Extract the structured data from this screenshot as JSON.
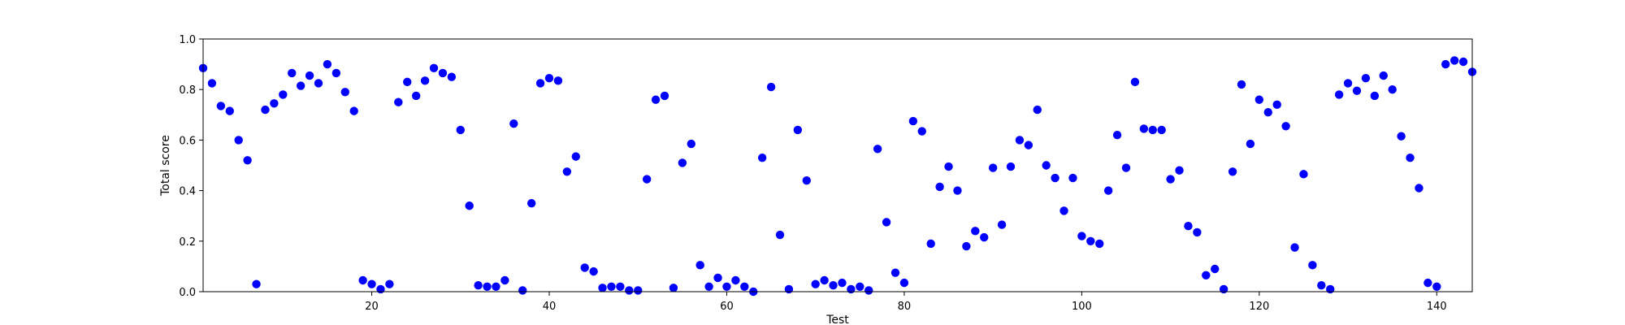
{
  "chart_data": {
    "type": "scatter",
    "xlabel": "Test",
    "ylabel": "Total score",
    "xlim": [
      1,
      144
    ],
    "ylim": [
      0.0,
      1.0
    ],
    "xticks": [
      20,
      40,
      60,
      80,
      100,
      120,
      140
    ],
    "yticks": [
      0.0,
      0.2,
      0.4,
      0.6,
      0.8,
      1.0
    ],
    "xtick_labels": [
      "20",
      "40",
      "60",
      "80",
      "100",
      "120",
      "140"
    ],
    "ytick_labels": [
      "0.0",
      "0.2",
      "0.4",
      "0.6",
      "0.8",
      "1.0"
    ],
    "grid": false,
    "marker_color": "#0000ff",
    "x": [
      1,
      2,
      3,
      4,
      5,
      6,
      7,
      8,
      9,
      10,
      11,
      12,
      13,
      14,
      15,
      16,
      17,
      18,
      19,
      20,
      21,
      22,
      23,
      24,
      25,
      26,
      27,
      28,
      29,
      30,
      31,
      32,
      33,
      34,
      35,
      36,
      37,
      38,
      39,
      40,
      41,
      42,
      43,
      44,
      45,
      46,
      47,
      48,
      49,
      50,
      51,
      52,
      53,
      54,
      55,
      56,
      57,
      58,
      59,
      60,
      61,
      62,
      63,
      64,
      65,
      66,
      67,
      68,
      69,
      70,
      71,
      72,
      73,
      74,
      75,
      76,
      77,
      78,
      79,
      80,
      81,
      82,
      83,
      84,
      85,
      86,
      87,
      88,
      89,
      90,
      91,
      92,
      93,
      94,
      95,
      96,
      97,
      98,
      99,
      100,
      101,
      102,
      103,
      104,
      105,
      106,
      107,
      108,
      109,
      110,
      111,
      112,
      113,
      114,
      115,
      116,
      117,
      118,
      119,
      120,
      121,
      122,
      123,
      124,
      125,
      126,
      127,
      128,
      129,
      130,
      131,
      132,
      133,
      134,
      135,
      136,
      137,
      138,
      139,
      140,
      141,
      142,
      143,
      144
    ],
    "y": [
      0.885,
      0.825,
      0.735,
      0.715,
      0.6,
      0.52,
      0.03,
      0.72,
      0.745,
      0.78,
      0.865,
      0.815,
      0.855,
      0.825,
      0.9,
      0.865,
      0.79,
      0.715,
      0.045,
      0.03,
      0.01,
      0.03,
      0.75,
      0.83,
      0.775,
      0.835,
      0.885,
      0.865,
      0.85,
      0.64,
      0.34,
      0.025,
      0.02,
      0.02,
      0.045,
      0.665,
      0.005,
      0.35,
      0.825,
      0.845,
      0.835,
      0.475,
      0.535,
      0.095,
      0.08,
      0.015,
      0.02,
      0.02,
      0.005,
      0.005,
      0.445,
      0.76,
      0.775,
      0.015,
      0.51,
      0.585,
      0.105,
      0.02,
      0.055,
      0.02,
      0.045,
      0.02,
      0.0,
      0.53,
      0.81,
      0.225,
      0.01,
      0.64,
      0.44,
      0.03,
      0.045,
      0.025,
      0.035,
      0.01,
      0.02,
      0.005,
      0.565,
      0.275,
      0.075,
      0.035,
      0.675,
      0.635,
      0.19,
      0.415,
      0.495,
      0.4,
      0.18,
      0.24,
      0.215,
      0.49,
      0.265,
      0.495,
      0.6,
      0.58,
      0.72,
      0.5,
      0.45,
      0.32,
      0.45,
      0.22,
      0.2,
      0.19,
      0.4,
      0.62,
      0.49,
      0.83,
      0.645,
      0.64,
      0.64,
      0.445,
      0.48,
      0.26,
      0.235,
      0.065,
      0.09,
      0.01,
      0.475,
      0.82,
      0.585,
      0.76,
      0.71,
      0.74,
      0.655,
      0.175,
      0.465,
      0.105,
      0.025,
      0.01,
      0.78,
      0.825,
      0.795,
      0.845,
      0.775,
      0.855,
      0.8,
      0.615,
      0.53,
      0.41,
      0.035,
      0.02,
      0.9,
      0.915,
      0.91,
      0.87
    ]
  }
}
